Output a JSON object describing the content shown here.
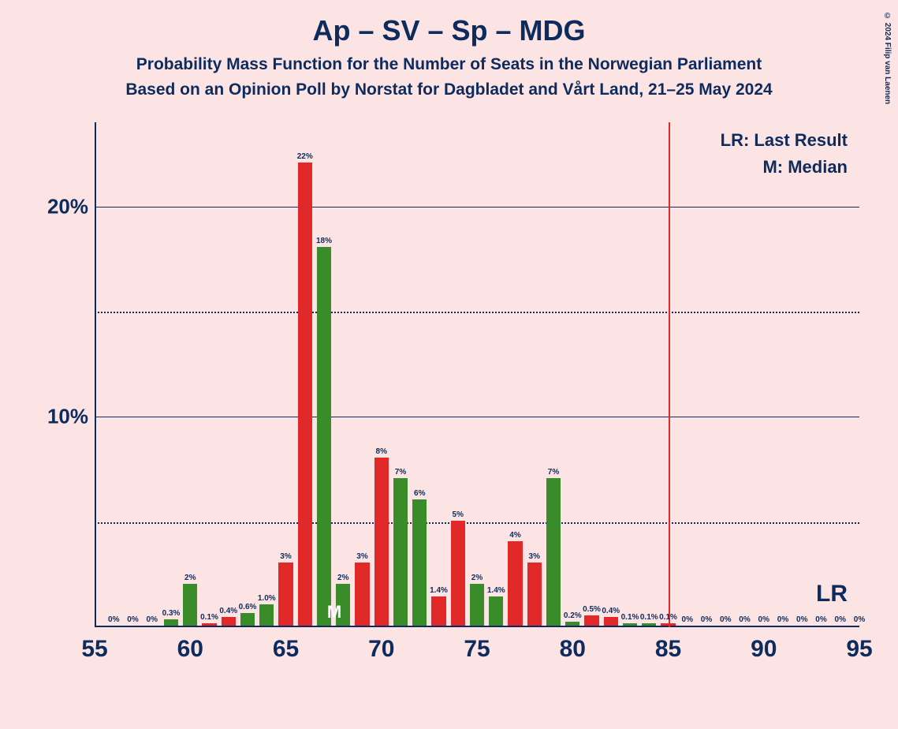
{
  "copyright": "© 2024 Filip van Laenen",
  "title": "Ap – SV – Sp – MDG",
  "subtitle1": "Probability Mass Function for the Number of Seats in the Norwegian Parliament",
  "subtitle2": "Based on an Opinion Poll by Norstat for Dagbladet and Vårt Land, 21–25 May 2024",
  "legend": {
    "lr": "LR: Last Result",
    "m": "M: Median"
  },
  "lr_label": "LR",
  "m_label": "M",
  "chart": {
    "x_start": 55,
    "x_end": 95,
    "y_max_percent": 24,
    "ytick_major": [
      10,
      20
    ],
    "ytick_minor": [
      5,
      15
    ],
    "xticks": [
      55,
      60,
      65,
      70,
      75,
      80,
      85,
      90,
      95
    ],
    "lr_x": 85,
    "median_x": 67,
    "colors": {
      "red": "#e22929",
      "green": "#3a8c2b",
      "text": "#0d2b5c",
      "bg": "#fce4e4"
    },
    "bar_label_fontsize": 10,
    "axis_label_fontsize": 30,
    "bars": [
      {
        "x": 56,
        "v": 0,
        "c": "red",
        "l": "0%"
      },
      {
        "x": 57,
        "v": 0,
        "c": "green",
        "l": "0%"
      },
      {
        "x": 58,
        "v": 0,
        "c": "red",
        "l": "0%"
      },
      {
        "x": 59,
        "v": 0.3,
        "c": "green",
        "l": "0.3%"
      },
      {
        "x": 60,
        "v": 2,
        "c": "green",
        "l": "2%"
      },
      {
        "x": 61,
        "v": 0.1,
        "c": "red",
        "l": "0.1%"
      },
      {
        "x": 62,
        "v": 0.4,
        "c": "red",
        "l": "0.4%"
      },
      {
        "x": 63,
        "v": 0.6,
        "c": "green",
        "l": "0.6%"
      },
      {
        "x": 64,
        "v": 1.0,
        "c": "green",
        "l": "1.0%"
      },
      {
        "x": 65,
        "v": 3,
        "c": "red",
        "l": "3%"
      },
      {
        "x": 66,
        "v": 22,
        "c": "red",
        "l": "22%"
      },
      {
        "x": 67,
        "v": 18,
        "c": "green",
        "l": "18%"
      },
      {
        "x": 68,
        "v": 2,
        "c": "green",
        "l": "2%"
      },
      {
        "x": 69,
        "v": 3,
        "c": "red",
        "l": "3%"
      },
      {
        "x": 70,
        "v": 8,
        "c": "red",
        "l": "8%"
      },
      {
        "x": 71,
        "v": 7,
        "c": "green",
        "l": "7%"
      },
      {
        "x": 72,
        "v": 6,
        "c": "green",
        "l": "6%"
      },
      {
        "x": 73,
        "v": 1.4,
        "c": "red",
        "l": "1.4%"
      },
      {
        "x": 74,
        "v": 5,
        "c": "red",
        "l": "5%"
      },
      {
        "x": 75,
        "v": 2,
        "c": "green",
        "l": "2%"
      },
      {
        "x": 76,
        "v": 1.4,
        "c": "green",
        "l": "1.4%"
      },
      {
        "x": 77,
        "v": 4,
        "c": "red",
        "l": "4%"
      },
      {
        "x": 78,
        "v": 3,
        "c": "red",
        "l": "3%"
      },
      {
        "x": 79,
        "v": 7,
        "c": "green",
        "l": "7%"
      },
      {
        "x": 80,
        "v": 0.2,
        "c": "green",
        "l": "0.2%"
      },
      {
        "x": 81,
        "v": 0.5,
        "c": "red",
        "l": "0.5%"
      },
      {
        "x": 82,
        "v": 0.4,
        "c": "red",
        "l": "0.4%"
      },
      {
        "x": 83,
        "v": 0.1,
        "c": "green",
        "l": "0.1%"
      },
      {
        "x": 84,
        "v": 0.1,
        "c": "green",
        "l": "0.1%"
      },
      {
        "x": 85,
        "v": 0.1,
        "c": "red",
        "l": "0.1%"
      },
      {
        "x": 86,
        "v": 0,
        "c": "red",
        "l": "0%"
      },
      {
        "x": 87,
        "v": 0,
        "c": "green",
        "l": "0%"
      },
      {
        "x": 88,
        "v": 0,
        "c": "green",
        "l": "0%"
      },
      {
        "x": 89,
        "v": 0,
        "c": "red",
        "l": "0%"
      },
      {
        "x": 90,
        "v": 0,
        "c": "red",
        "l": "0%"
      },
      {
        "x": 91,
        "v": 0,
        "c": "green",
        "l": "0%"
      },
      {
        "x": 92,
        "v": 0,
        "c": "green",
        "l": "0%"
      },
      {
        "x": 93,
        "v": 0,
        "c": "red",
        "l": "0%"
      },
      {
        "x": 94,
        "v": 0,
        "c": "red",
        "l": "0%"
      },
      {
        "x": 95,
        "v": 0,
        "c": "green",
        "l": "0%"
      }
    ]
  }
}
